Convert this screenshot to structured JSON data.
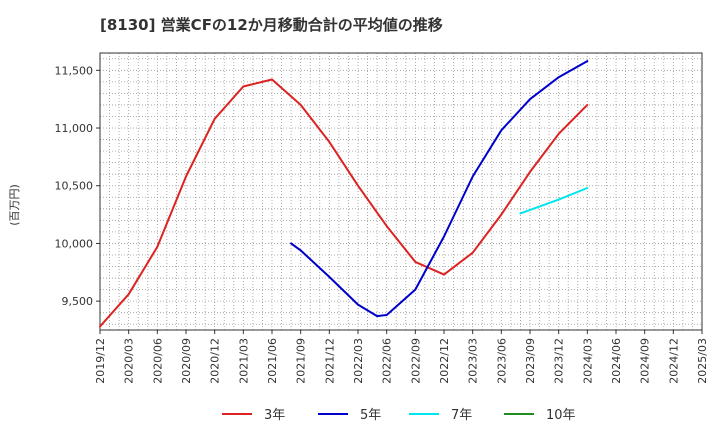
{
  "chart_data": {
    "type": "line",
    "title": "[8130]  営業CFの12か月移動合計の平均値の推移",
    "ylabel": "(百万円)",
    "xlabel": "",
    "ylim": [
      9250,
      11650
    ],
    "yticks": [
      9500,
      10000,
      10500,
      11000,
      11500
    ],
    "ytick_labels": [
      "9,500",
      "10,000",
      "10,500",
      "11,000",
      "11,500"
    ],
    "xticks": [
      "2019/12",
      "2020/03",
      "2020/06",
      "2020/09",
      "2020/12",
      "2021/03",
      "2021/06",
      "2021/09",
      "2021/12",
      "2022/03",
      "2022/06",
      "2022/09",
      "2022/12",
      "2023/03",
      "2023/06",
      "2023/09",
      "2023/12",
      "2024/03",
      "2024/06",
      "2024/09",
      "2024/12",
      "2025/03"
    ],
    "grid": true,
    "legend_position": "bottom",
    "series": [
      {
        "name": "3年",
        "color": "#dd2222",
        "points": [
          [
            "2019/12",
            9280
          ],
          [
            "2020/03",
            9560
          ],
          [
            "2020/06",
            9970
          ],
          [
            "2020/09",
            10580
          ],
          [
            "2020/12",
            11080
          ],
          [
            "2021/03",
            11360
          ],
          [
            "2021/06",
            11420
          ],
          [
            "2021/09",
            11200
          ],
          [
            "2021/12",
            10880
          ],
          [
            "2022/03",
            10500
          ],
          [
            "2022/06",
            10150
          ],
          [
            "2022/09",
            9840
          ],
          [
            "2022/12",
            9730
          ],
          [
            "2023/03",
            9920
          ],
          [
            "2023/06",
            10250
          ],
          [
            "2023/09",
            10620
          ],
          [
            "2023/12",
            10950
          ],
          [
            "2024/03",
            11200
          ]
        ]
      },
      {
        "name": "5年",
        "color": "#0000cc",
        "points": [
          [
            "2021/08",
            10000
          ],
          [
            "2021/09",
            9940
          ],
          [
            "2021/12",
            9710
          ],
          [
            "2022/03",
            9470
          ],
          [
            "2022/05",
            9370
          ],
          [
            "2022/06",
            9380
          ],
          [
            "2022/09",
            9600
          ],
          [
            "2022/12",
            10060
          ],
          [
            "2023/03",
            10580
          ],
          [
            "2023/06",
            10980
          ],
          [
            "2023/09",
            11250
          ],
          [
            "2023/12",
            11440
          ],
          [
            "2024/03",
            11580
          ]
        ]
      },
      {
        "name": "7年",
        "color": "#00e5ee",
        "points": [
          [
            "2023/08",
            10260
          ],
          [
            "2023/12",
            10380
          ],
          [
            "2024/03",
            10480
          ]
        ]
      },
      {
        "name": "10年",
        "color": "#228b22",
        "points": []
      }
    ]
  }
}
